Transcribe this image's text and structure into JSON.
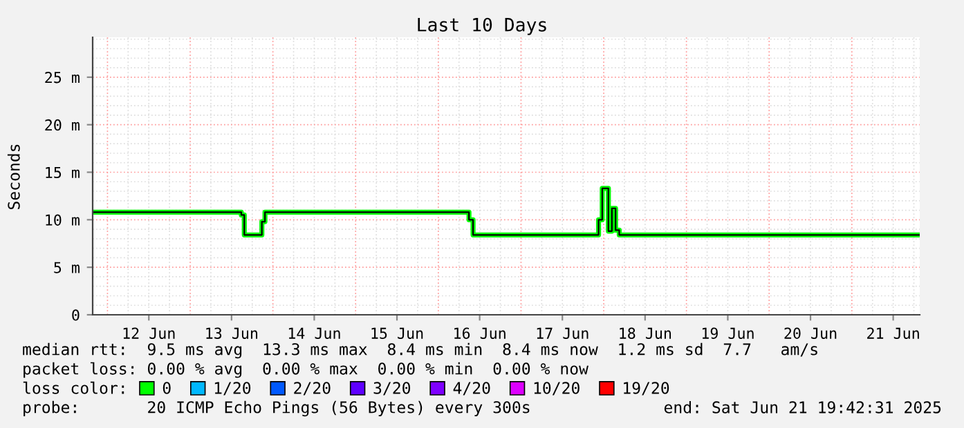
{
  "chart_data": {
    "type": "step",
    "title": "Last 10 Days",
    "ylabel": "Seconds",
    "xlim": [
      "2025-06-11T19:42",
      "2025-06-21T19:42"
    ],
    "xticks": [
      {
        "value": "2025-06-12T12:00",
        "label": "12 Jun"
      },
      {
        "value": "2025-06-13T12:00",
        "label": "13 Jun"
      },
      {
        "value": "2025-06-14T12:00",
        "label": "14 Jun"
      },
      {
        "value": "2025-06-15T12:00",
        "label": "15 Jun"
      },
      {
        "value": "2025-06-16T12:00",
        "label": "16 Jun"
      },
      {
        "value": "2025-06-17T12:00",
        "label": "17 Jun"
      },
      {
        "value": "2025-06-18T12:00",
        "label": "18 Jun"
      },
      {
        "value": "2025-06-19T12:00",
        "label": "19 Jun"
      },
      {
        "value": "2025-06-20T12:00",
        "label": "20 Jun"
      },
      {
        "value": "2025-06-21T12:00",
        "label": "21 Jun"
      }
    ],
    "ylim": [
      0,
      29.2
    ],
    "yticks": [
      0,
      {
        "value": 5,
        "label": "5 m"
      },
      {
        "value": 10,
        "label": "10 m"
      },
      {
        "value": 15,
        "label": "15 m"
      },
      {
        "value": 20,
        "label": "20 m"
      },
      {
        "value": 25,
        "label": "25 m"
      }
    ],
    "grid": true,
    "legend": "bottom",
    "legend_title": "loss color:",
    "series": [
      {
        "name": "0",
        "color": "#00ff00",
        "x": [
          "2025-06-11T19:42",
          "2025-06-13T14:50",
          "2025-06-13T15:42",
          "2025-06-13T20:48",
          "2025-06-13T21:42",
          "2025-06-16T08:54",
          "2025-06-16T10:05",
          "2025-06-17T22:30",
          "2025-06-17T23:34",
          "2025-06-18T01:21",
          "2025-06-18T02:22",
          "2025-06-18T03:26",
          "2025-06-18T04:30",
          "2025-06-21T19:42"
        ],
        "values": [
          10.8,
          10.5,
          8.4,
          9.8,
          10.8,
          10.0,
          8.4,
          10.0,
          13.3,
          8.8,
          11.2,
          8.9,
          8.4,
          8.4
        ]
      },
      {
        "name": "1/20",
        "color": "#00b8ff"
      },
      {
        "name": "2/20",
        "color": "#0059ff"
      },
      {
        "name": "3/20",
        "color": "#5e00ff"
      },
      {
        "name": "4/20",
        "color": "#7e00ff"
      },
      {
        "name": "10/20",
        "color": "#dd00ff"
      },
      {
        "name": "19/20",
        "color": "#ff0000"
      }
    ],
    "annotations": [
      "median rtt:  9.5 ms avg  13.3 ms max  8.4 ms min  8.4 ms now  1.2 ms sd  7.7   am/s",
      "packet loss: 0.00 % avg  0.00 % max  0.00 % min  0.00 % now",
      "probe:       20 ICMP Echo Pings (56 Bytes) every 300s",
      "end: Sat Jun 21 19:42:31 2025"
    ]
  }
}
